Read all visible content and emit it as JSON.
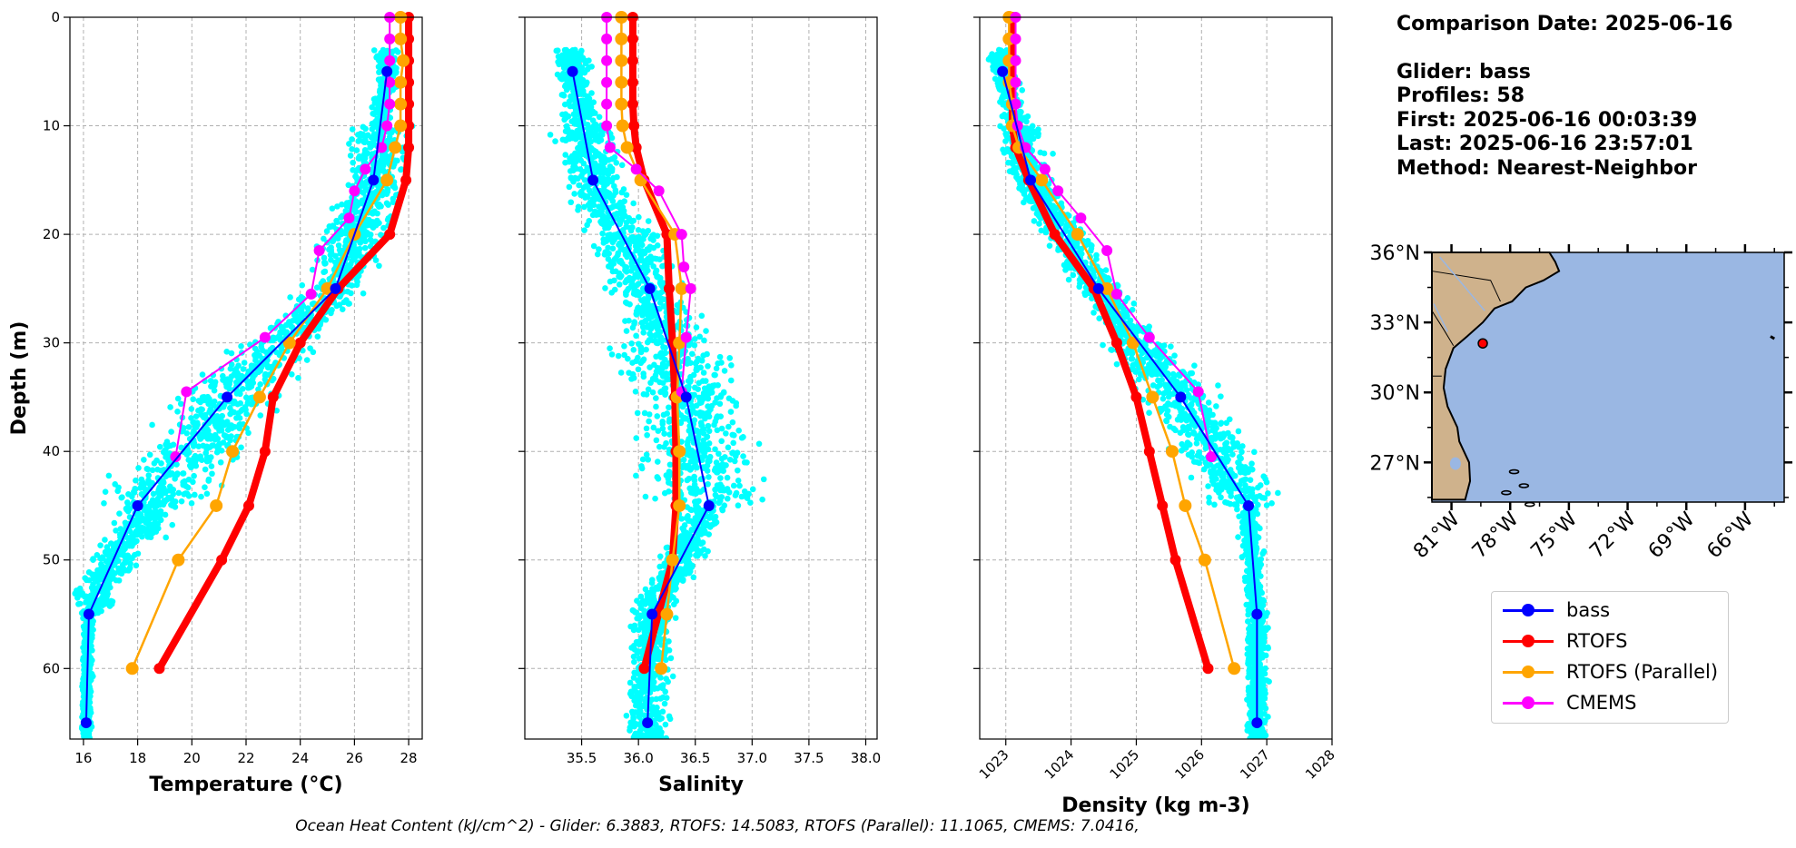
{
  "info": {
    "date": "Comparison Date: 2025-06-16",
    "glider": "Glider: bass",
    "profiles": "Profiles: 58",
    "first": "First: 2025-06-16 00:03:39",
    "last": "Last: 2025-06-16 23:57:01",
    "method": "Method: Nearest-Neighbor"
  },
  "footer": "Ocean Heat Content (kJ/cm^2) - Glider: 6.3883,  RTOFS: 14.5083,  RTOFS (Parallel): 11.1065,  CMEMS: 7.0416,",
  "legend": [
    {
      "label": "bass",
      "color": "#0000ff"
    },
    {
      "label": "RTOFS",
      "color": "#ff0000"
    },
    {
      "label": "RTOFS (Parallel)",
      "color": "#ffa500"
    },
    {
      "label": "CMEMS",
      "color": "#ff00ff"
    }
  ],
  "colors": {
    "scatter": "#00ffff",
    "glider": "#0000ff",
    "rtofs": "#ff0000",
    "parallel": "#ffa500",
    "cmems": "#ff00ff",
    "ocean": "#9ab7e3",
    "land": "#cfb28c"
  },
  "ylabel": "Depth (m)",
  "yticks": [
    0,
    10,
    20,
    30,
    40,
    50,
    60
  ],
  "ylim": [
    0,
    66.5
  ],
  "map": {
    "lat_labels": [
      "36°N",
      "33°N",
      "30°N",
      "27°N"
    ],
    "lat_values": [
      36,
      33,
      30,
      27
    ],
    "lon_labels": [
      "81°W",
      "78°W",
      "75°W",
      "72°W",
      "69°W",
      "66°W"
    ],
    "lon_values": [
      -81,
      -78,
      -75,
      -72,
      -69,
      -66
    ],
    "extent": {
      "lon": [
        -82,
        -64
      ],
      "lat": [
        25.3,
        36
      ]
    },
    "glider_position": {
      "lon": -79.4,
      "lat": 32.1
    }
  },
  "chart_data": [
    {
      "type": "line",
      "xlabel": "Temperature (°C)",
      "xlim": [
        15.5,
        28.5
      ],
      "xticks": [
        16,
        18,
        20,
        22,
        24,
        26,
        28
      ],
      "ylabel": "Depth (m)",
      "series": [
        {
          "name": "bass",
          "depth": [
            5,
            15,
            25,
            35,
            45,
            55,
            65
          ],
          "values": [
            27.2,
            26.7,
            25.3,
            21.3,
            18.0,
            16.2,
            16.1
          ]
        },
        {
          "name": "RTOFS",
          "depth": [
            0,
            2,
            4,
            6,
            8,
            10,
            12,
            15,
            20,
            25,
            30,
            35,
            40,
            45,
            50,
            60
          ],
          "values": [
            28.0,
            28.0,
            28.0,
            28.0,
            28.0,
            28.0,
            28.0,
            27.9,
            27.3,
            25.4,
            24.0,
            23.0,
            22.7,
            22.1,
            21.1,
            18.8
          ]
        },
        {
          "name": "RTOFS (Parallel)",
          "depth": [
            0,
            2,
            4,
            6,
            8,
            10,
            12,
            15,
            20,
            25,
            30,
            35,
            40,
            45,
            50,
            60
          ],
          "values": [
            27.7,
            27.7,
            27.8,
            27.7,
            27.7,
            27.7,
            27.5,
            27.2,
            26.0,
            25.0,
            23.6,
            22.5,
            21.5,
            20.9,
            19.5,
            17.8
          ]
        },
        {
          "name": "CMEMS",
          "depth": [
            0,
            2,
            4,
            6,
            8,
            10,
            12,
            14,
            16,
            18.5,
            21.5,
            25.5,
            29.5,
            34.5,
            40.5
          ],
          "values": [
            27.3,
            27.3,
            27.3,
            27.3,
            27.3,
            27.2,
            27.0,
            26.4,
            26.0,
            25.8,
            24.7,
            24.4,
            22.7,
            19.8,
            19.4
          ]
        }
      ]
    },
    {
      "type": "line",
      "xlabel": "Salinity",
      "xlim": [
        35.0,
        38.1
      ],
      "xticks": [
        35.5,
        36.0,
        36.5,
        37.0,
        37.5,
        38.0
      ],
      "series": [
        {
          "name": "bass",
          "depth": [
            5,
            15,
            25,
            35,
            45,
            55,
            65
          ],
          "values": [
            35.42,
            35.6,
            36.1,
            36.42,
            36.62,
            36.12,
            36.08
          ]
        },
        {
          "name": "RTOFS",
          "depth": [
            0,
            2,
            4,
            6,
            8,
            10,
            12,
            15,
            20,
            25,
            30,
            35,
            40,
            45,
            50,
            60
          ],
          "values": [
            35.95,
            35.95,
            35.95,
            35.95,
            35.95,
            35.96,
            35.98,
            36.05,
            36.25,
            36.27,
            36.3,
            36.32,
            36.33,
            36.33,
            36.3,
            36.05
          ]
        },
        {
          "name": "RTOFS (Parallel)",
          "depth": [
            0,
            2,
            4,
            6,
            8,
            10,
            12,
            15,
            20,
            25,
            30,
            35,
            40,
            45,
            50,
            55,
            60
          ],
          "values": [
            35.85,
            35.85,
            35.85,
            35.85,
            35.85,
            35.86,
            35.9,
            36.02,
            36.32,
            36.38,
            36.36,
            36.34,
            36.36,
            36.36,
            36.3,
            36.25,
            36.2
          ]
        },
        {
          "name": "CMEMS",
          "depth": [
            0,
            2,
            4,
            6,
            8,
            10,
            12,
            14,
            16,
            20,
            23,
            25,
            29.5,
            34.5
          ],
          "values": [
            35.72,
            35.72,
            35.72,
            35.72,
            35.72,
            35.72,
            35.75,
            35.98,
            36.18,
            36.38,
            36.4,
            36.46,
            36.42,
            36.38
          ]
        }
      ]
    },
    {
      "type": "line",
      "xlabel": "Density (kg m-3)",
      "xlim": [
        1022.6,
        1028.0
      ],
      "xticks": [
        1023,
        1024,
        1025,
        1026,
        1027,
        1028
      ],
      "series": [
        {
          "name": "bass",
          "depth": [
            5,
            15,
            25,
            35,
            45,
            55,
            65
          ],
          "values": [
            1022.95,
            1023.38,
            1024.42,
            1025.68,
            1026.72,
            1026.85,
            1026.85
          ]
        },
        {
          "name": "RTOFS",
          "depth": [
            0,
            2,
            4,
            6,
            8,
            10,
            12,
            15,
            20,
            25,
            30,
            35,
            40,
            45,
            50,
            60
          ],
          "values": [
            1023.1,
            1023.1,
            1023.1,
            1023.1,
            1023.1,
            1023.1,
            1023.15,
            1023.35,
            1023.75,
            1024.35,
            1024.7,
            1025.0,
            1025.2,
            1025.4,
            1025.6,
            1026.1
          ]
        },
        {
          "name": "RTOFS (Parallel)",
          "depth": [
            0,
            2,
            4,
            6,
            8,
            10,
            12,
            15,
            20,
            25,
            30,
            35,
            40,
            45,
            50,
            60
          ],
          "values": [
            1023.05,
            1023.05,
            1023.05,
            1023.05,
            1023.1,
            1023.1,
            1023.2,
            1023.55,
            1024.1,
            1024.55,
            1024.95,
            1025.25,
            1025.55,
            1025.75,
            1026.05,
            1026.5
          ]
        },
        {
          "name": "CMEMS",
          "depth": [
            0,
            2,
            4,
            6,
            8,
            10,
            12,
            14,
            16,
            18.5,
            21.5,
            25.5,
            29.5,
            34.5,
            40.5
          ],
          "values": [
            1023.15,
            1023.15,
            1023.15,
            1023.15,
            1023.15,
            1023.18,
            1023.3,
            1023.6,
            1023.8,
            1024.15,
            1024.55,
            1024.7,
            1025.2,
            1025.95,
            1026.15
          ]
        }
      ]
    }
  ]
}
